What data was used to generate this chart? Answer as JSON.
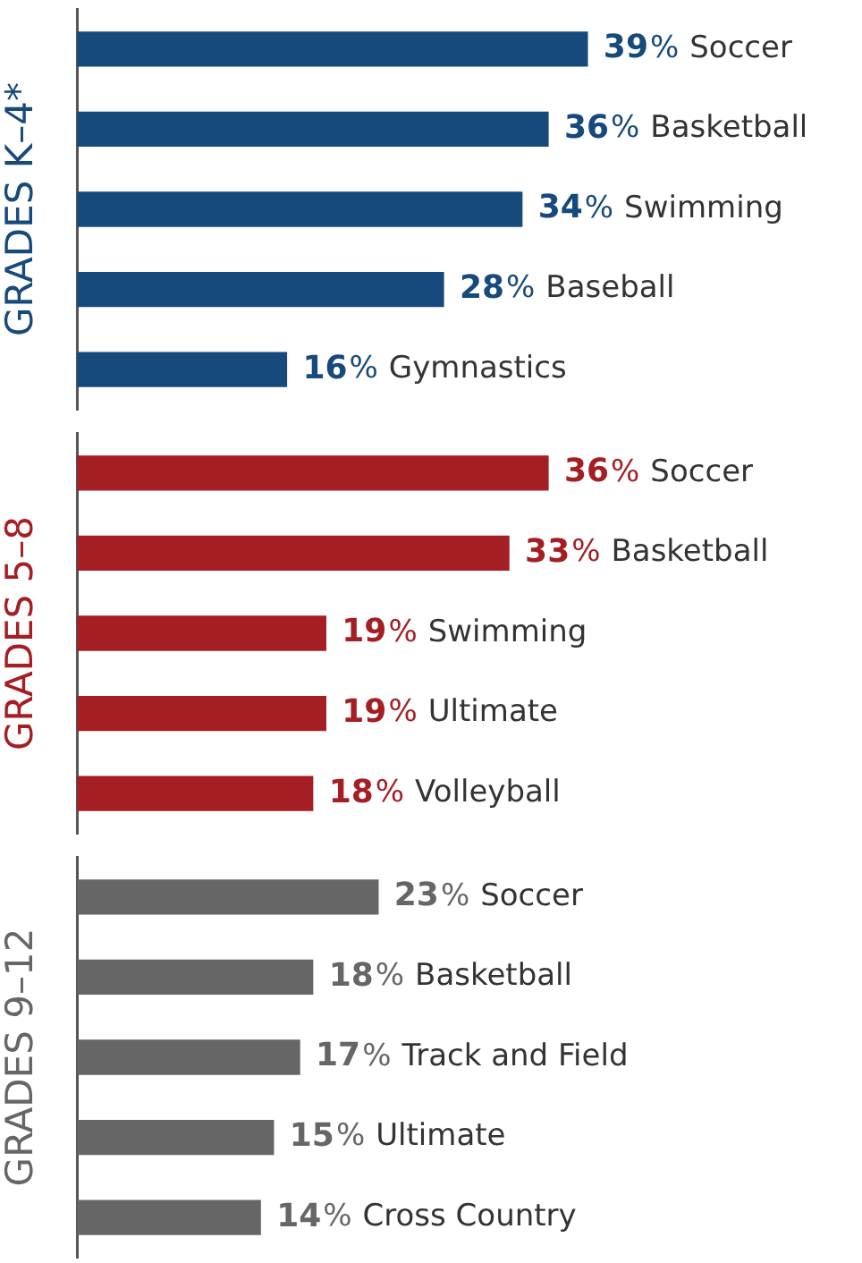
{
  "chart_data": [
    {
      "type": "bar",
      "orientation": "horizontal",
      "ylabel": "GRADES K–4*",
      "categories": [
        "Soccer",
        "Basketball",
        "Swimming",
        "Baseball",
        "Gymnastics"
      ],
      "xlim": [
        0,
        60
      ],
      "series": [
        {
          "color": "#174a7c",
          "values": [
            39,
            36,
            34,
            28,
            16
          ],
          "value_labels": [
            "39%",
            "36%",
            "34%",
            "28%",
            "16%"
          ]
        }
      ],
      "grid": false,
      "legend": false,
      "tick_labels": false
    },
    {
      "type": "bar",
      "orientation": "horizontal",
      "ylabel": "GRADES 5–8",
      "categories": [
        "Soccer",
        "Basketball",
        "Swimming",
        "Ultimate",
        "Volleyball"
      ],
      "xlim": [
        0,
        60
      ],
      "series": [
        {
          "color": "#a51e23",
          "values": [
            36,
            33,
            19,
            19,
            18
          ],
          "value_labels": [
            "36%",
            "33%",
            "19%",
            "19%",
            "18%"
          ]
        }
      ],
      "grid": false,
      "legend": false,
      "tick_labels": false
    },
    {
      "type": "bar",
      "orientation": "horizontal",
      "ylabel": "GRADES 9–12",
      "categories": [
        "Soccer",
        "Basketball",
        "Track and Field",
        "Ultimate",
        "Cross Country"
      ],
      "xlim": [
        0,
        60
      ],
      "series": [
        {
          "color": "#666666",
          "values": [
            23,
            18,
            17,
            15,
            14
          ],
          "value_labels": [
            "23%",
            "18%",
            "17%",
            "15%",
            "14%"
          ]
        }
      ],
      "grid": false,
      "legend": false,
      "tick_labels": false
    }
  ]
}
